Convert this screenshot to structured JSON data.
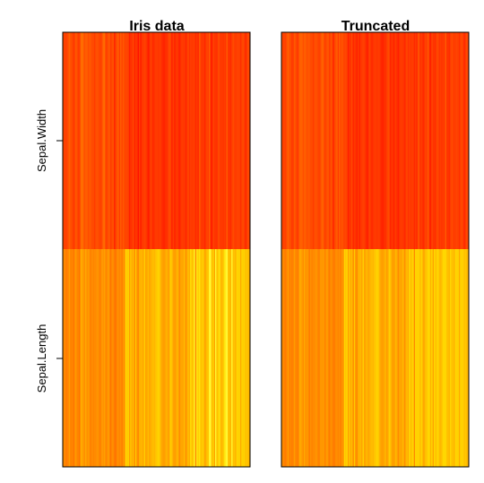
{
  "chart_data": [
    {
      "type": "heatmap",
      "title": "Iris data",
      "rows": [
        "Sepal.Length",
        "Sepal.Width"
      ],
      "n_columns": 150,
      "palette": "heat (red to yellow)",
      "values": {
        "Sepal.Width": [
          3.5,
          3.0,
          3.2,
          3.1,
          3.6,
          3.9,
          3.4,
          3.4,
          2.9,
          3.1,
          3.7,
          3.4,
          3.0,
          3.0,
          4.0,
          4.4,
          3.9,
          3.5,
          3.8,
          3.8,
          3.4,
          3.7,
          3.6,
          3.3,
          3.4,
          3.0,
          3.4,
          3.5,
          3.4,
          3.2,
          3.1,
          3.4,
          4.1,
          4.2,
          3.1,
          3.2,
          3.5,
          3.6,
          3.0,
          3.4,
          3.5,
          2.3,
          3.2,
          3.5,
          3.8,
          3.0,
          3.8,
          3.2,
          3.7,
          3.3,
          3.2,
          3.2,
          3.1,
          2.3,
          2.8,
          2.8,
          3.3,
          2.4,
          2.9,
          2.7,
          2.0,
          3.0,
          2.2,
          2.9,
          2.9,
          3.1,
          3.0,
          2.7,
          2.2,
          2.5,
          3.2,
          2.8,
          2.5,
          2.8,
          2.9,
          3.0,
          2.8,
          3.0,
          2.9,
          2.6,
          2.4,
          2.4,
          2.7,
          2.7,
          3.0,
          3.4,
          3.1,
          2.3,
          3.0,
          2.5,
          2.6,
          3.0,
          2.6,
          2.3,
          2.7,
          3.0,
          2.9,
          2.9,
          2.5,
          2.8,
          3.3,
          2.7,
          3.0,
          2.9,
          3.0,
          3.0,
          2.5,
          2.9,
          2.5,
          3.6,
          3.2,
          2.7,
          3.0,
          2.5,
          2.8,
          3.2,
          3.0,
          3.8,
          2.6,
          2.2,
          3.2,
          2.8,
          2.8,
          2.7,
          3.3,
          3.2,
          2.8,
          3.0,
          2.8,
          3.0,
          2.8,
          3.8,
          2.8,
          2.8,
          2.6,
          3.0,
          3.4,
          3.1,
          3.0,
          3.1,
          3.1,
          3.1,
          2.7,
          3.2,
          3.3,
          3.0,
          2.5,
          3.0,
          3.4,
          3.0
        ],
        "Sepal.Length": [
          5.1,
          4.9,
          4.7,
          4.6,
          5.0,
          5.4,
          4.6,
          5.0,
          4.4,
          4.9,
          5.4,
          4.8,
          4.8,
          4.3,
          5.8,
          5.7,
          5.4,
          5.1,
          5.7,
          5.1,
          5.4,
          5.1,
          4.6,
          5.1,
          4.8,
          5.0,
          5.0,
          5.2,
          5.2,
          4.7,
          4.8,
          5.4,
          5.2,
          5.5,
          4.9,
          5.0,
          5.5,
          4.9,
          4.4,
          5.1,
          5.0,
          4.5,
          4.4,
          5.0,
          5.1,
          4.8,
          5.1,
          4.6,
          5.3,
          5.0,
          7.0,
          6.4,
          6.9,
          5.5,
          6.5,
          5.7,
          6.3,
          4.9,
          6.6,
          5.2,
          5.0,
          5.9,
          6.0,
          6.1,
          5.6,
          6.7,
          5.6,
          5.8,
          6.2,
          5.6,
          5.9,
          6.1,
          6.3,
          6.1,
          6.4,
          6.6,
          6.8,
          6.7,
          6.0,
          5.7,
          5.5,
          5.5,
          5.8,
          6.0,
          5.4,
          6.0,
          6.7,
          6.3,
          5.6,
          5.5,
          5.5,
          6.1,
          5.8,
          5.0,
          5.6,
          5.7,
          5.7,
          6.2,
          5.1,
          5.7,
          6.3,
          5.8,
          7.1,
          6.3,
          6.5,
          7.6,
          4.9,
          7.3,
          6.7,
          7.2,
          6.5,
          6.4,
          6.8,
          5.7,
          5.8,
          6.4,
          6.5,
          7.7,
          7.7,
          6.0,
          6.9,
          5.6,
          7.7,
          6.3,
          6.7,
          7.2,
          6.2,
          6.1,
          6.4,
          7.2,
          7.4,
          7.9,
          6.4,
          6.3,
          6.1,
          7.7,
          6.3,
          6.4,
          6.0,
          6.9,
          6.7,
          6.9,
          5.8,
          6.8,
          6.7,
          6.7,
          6.3,
          6.5,
          6.2,
          5.9
        ]
      }
    },
    {
      "type": "heatmap",
      "title": "Truncated",
      "rows": [
        "Sepal.Length",
        "Sepal.Width"
      ],
      "n_columns": 150,
      "palette": "heat (red to yellow)",
      "values": {
        "Sepal.Width": [
          3.5,
          3.0,
          3.2,
          3.1,
          3.6,
          3.9,
          3.4,
          3.4,
          2.9,
          3.1,
          3.7,
          3.4,
          3.0,
          3.0,
          3.9,
          3.9,
          3.9,
          3.5,
          3.8,
          3.8,
          3.4,
          3.7,
          3.6,
          3.3,
          3.4,
          3.0,
          3.4,
          3.5,
          3.4,
          3.2,
          3.1,
          3.4,
          3.9,
          3.9,
          3.1,
          3.2,
          3.5,
          3.6,
          3.0,
          3.4,
          3.5,
          2.3,
          3.2,
          3.5,
          3.8,
          3.0,
          3.8,
          3.2,
          3.7,
          3.3,
          3.2,
          3.2,
          3.1,
          2.3,
          2.8,
          2.8,
          3.3,
          2.4,
          2.9,
          2.7,
          2.3,
          3.0,
          2.3,
          2.9,
          2.9,
          3.1,
          3.0,
          2.7,
          2.3,
          2.5,
          3.2,
          2.8,
          2.5,
          2.8,
          2.9,
          3.0,
          2.8,
          3.0,
          2.9,
          2.6,
          2.4,
          2.4,
          2.7,
          2.7,
          3.0,
          3.4,
          3.1,
          2.3,
          3.0,
          2.5,
          2.6,
          3.0,
          2.6,
          2.3,
          2.7,
          3.0,
          2.9,
          2.9,
          2.5,
          2.8,
          3.3,
          2.7,
          3.0,
          2.9,
          3.0,
          3.0,
          2.5,
          2.9,
          2.5,
          3.6,
          3.2,
          2.7,
          3.0,
          2.5,
          2.8,
          3.2,
          3.0,
          3.8,
          2.6,
          2.3,
          3.2,
          2.8,
          2.8,
          2.7,
          3.3,
          3.2,
          2.8,
          3.0,
          2.8,
          3.0,
          2.8,
          3.8,
          2.8,
          2.8,
          2.6,
          3.0,
          3.4,
          3.1,
          3.0,
          3.1,
          3.1,
          3.1,
          2.7,
          3.2,
          3.3,
          3.0,
          2.5,
          3.0,
          3.4,
          3.0
        ],
        "Sepal.Length": [
          5.1,
          4.9,
          4.7,
          4.6,
          5.0,
          5.4,
          4.6,
          5.0,
          4.6,
          4.9,
          5.4,
          4.8,
          4.8,
          4.6,
          5.8,
          5.7,
          5.4,
          5.1,
          5.7,
          5.1,
          5.4,
          5.1,
          4.6,
          5.1,
          4.8,
          5.0,
          5.0,
          5.2,
          5.2,
          4.7,
          4.8,
          5.4,
          5.2,
          5.5,
          4.9,
          5.0,
          5.5,
          4.9,
          4.6,
          5.1,
          5.0,
          4.6,
          4.6,
          5.0,
          5.1,
          4.8,
          5.1,
          4.6,
          5.3,
          5.0,
          6.9,
          6.4,
          6.9,
          5.5,
          6.5,
          5.7,
          6.3,
          4.9,
          6.6,
          5.2,
          5.0,
          5.9,
          6.0,
          6.1,
          5.6,
          6.7,
          5.6,
          5.8,
          6.2,
          5.6,
          5.9,
          6.1,
          6.3,
          6.1,
          6.4,
          6.6,
          6.8,
          6.7,
          6.0,
          5.7,
          5.5,
          5.5,
          5.8,
          6.0,
          5.4,
          6.0,
          6.7,
          6.3,
          5.6,
          5.5,
          5.5,
          6.1,
          5.8,
          5.0,
          5.6,
          5.7,
          5.7,
          6.2,
          5.1,
          5.7,
          6.3,
          5.8,
          6.9,
          6.3,
          6.5,
          6.9,
          4.9,
          6.9,
          6.7,
          6.9,
          6.5,
          6.4,
          6.8,
          5.7,
          5.8,
          6.4,
          6.5,
          6.9,
          6.9,
          6.0,
          6.9,
          5.6,
          6.9,
          6.3,
          6.7,
          6.9,
          6.2,
          6.1,
          6.4,
          6.9,
          6.9,
          6.9,
          6.4,
          6.3,
          6.1,
          6.9,
          6.3,
          6.4,
          6.0,
          6.9,
          6.7,
          6.9,
          5.8,
          6.8,
          6.7,
          6.7,
          6.3,
          6.5,
          6.2,
          5.9
        ]
      }
    }
  ],
  "colors": {
    "low": "#ff0000",
    "high": "#ffff33"
  }
}
